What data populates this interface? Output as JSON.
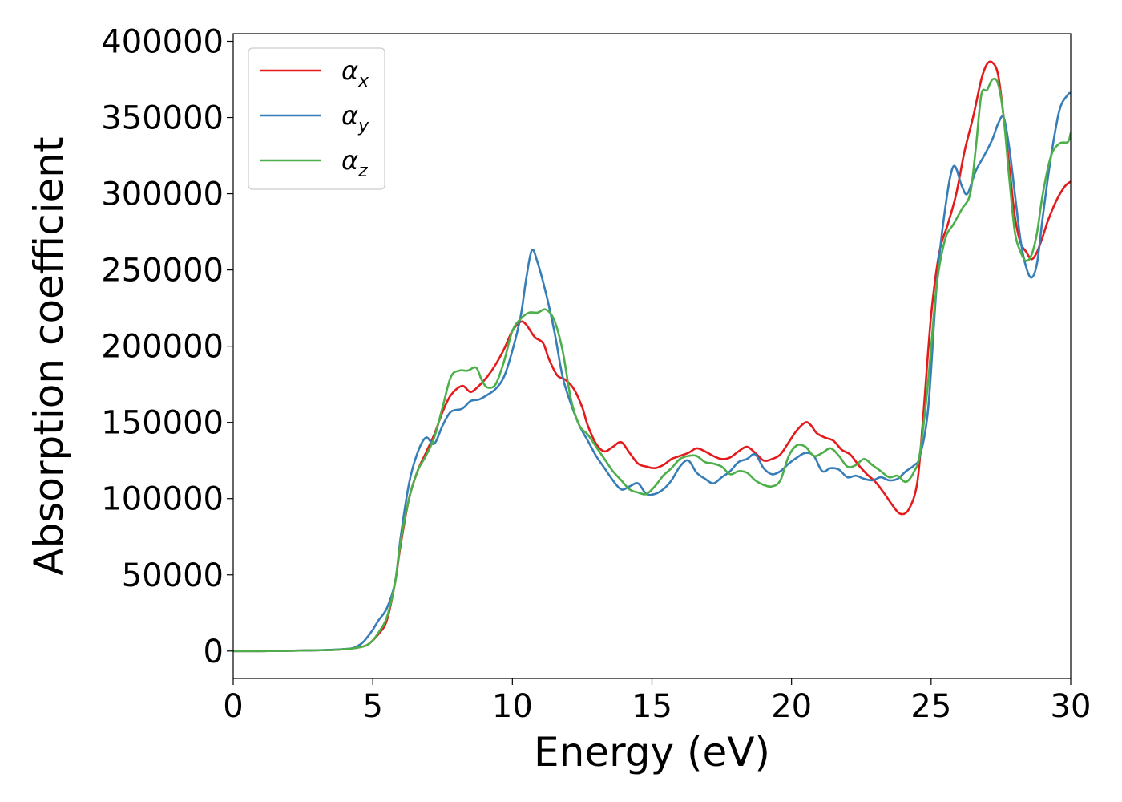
{
  "chart_data": {
    "type": "line",
    "title": "",
    "xlabel": "Energy (eV)",
    "ylabel": "Absorption coefficient",
    "xlim": [
      0,
      30
    ],
    "ylim": [
      -18000,
      405000
    ],
    "xticks": [
      0,
      5,
      10,
      15,
      20,
      25,
      30
    ],
    "yticks": [
      0,
      50000,
      100000,
      150000,
      200000,
      250000,
      300000,
      350000,
      400000
    ],
    "grid": false,
    "legend_position": "upper-left",
    "series": [
      {
        "name": "α_x",
        "label_base": "α",
        "label_sub": "x",
        "color": "#e41a1c",
        "x": [
          0,
          1,
          2,
          3,
          3.5,
          4,
          4.3,
          4.6,
          4.8,
          5,
          5.2,
          5.5,
          5.8,
          6,
          6.3,
          6.6,
          6.9,
          7.2,
          7.5,
          7.8,
          8.2,
          8.5,
          8.8,
          9.1,
          9.4,
          9.7,
          10,
          10.3,
          10.5,
          10.8,
          11.1,
          11.3,
          11.6,
          11.9,
          12.2,
          12.5,
          12.7,
          13,
          13.3,
          13.6,
          13.9,
          14.2,
          14.5,
          14.8,
          15.1,
          15.4,
          15.7,
          16,
          16.3,
          16.6,
          16.9,
          17.2,
          17.5,
          17.8,
          18.1,
          18.4,
          18.7,
          19,
          19.3,
          19.6,
          19.9,
          20.2,
          20.5,
          20.7,
          20.9,
          21.2,
          21.5,
          21.8,
          22.1,
          22.4,
          22.7,
          23,
          23.3,
          23.6,
          23.9,
          24.2,
          24.5,
          24.7,
          25,
          25.3,
          25.6,
          25.9,
          26.2,
          26.5,
          26.8,
          27,
          27.2,
          27.4,
          27.6,
          27.8,
          28,
          28.2,
          28.4,
          28.6,
          28.8,
          29,
          29.2,
          29.5,
          29.8,
          30
        ],
        "y": [
          0,
          0,
          200,
          500,
          700,
          1200,
          1800,
          2800,
          4000,
          7000,
          11000,
          20000,
          45000,
          70000,
          100000,
          118000,
          130000,
          142000,
          157000,
          168000,
          174000,
          170000,
          174000,
          180000,
          188000,
          198000,
          210000,
          216000,
          214000,
          206000,
          202000,
          192000,
          181000,
          178000,
          172000,
          160000,
          148000,
          136000,
          131000,
          134000,
          137000,
          130000,
          123000,
          121000,
          120000,
          122000,
          126000,
          128000,
          130000,
          133000,
          131000,
          128000,
          126000,
          127000,
          131000,
          134000,
          130000,
          125000,
          126000,
          129000,
          137000,
          145000,
          150000,
          148000,
          143000,
          140000,
          138000,
          132000,
          129000,
          122000,
          116000,
          111000,
          104000,
          96000,
          90000,
          93000,
          110000,
          150000,
          220000,
          262000,
          280000,
          300000,
          328000,
          350000,
          375000,
          385000,
          386000,
          378000,
          350000,
          318000,
          285000,
          268000,
          262000,
          257000,
          262000,
          272000,
          283000,
          296000,
          305000,
          308000
        ]
      },
      {
        "name": "α_y",
        "label_base": "α",
        "label_sub": "y",
        "color": "#377eb8",
        "x": [
          0,
          1,
          2,
          3,
          3.5,
          4,
          4.3,
          4.6,
          4.8,
          5,
          5.2,
          5.5,
          5.8,
          6,
          6.3,
          6.6,
          6.9,
          7.2,
          7.5,
          7.8,
          8.2,
          8.5,
          8.8,
          9.1,
          9.4,
          9.7,
          10,
          10.3,
          10.5,
          10.7,
          10.9,
          11.2,
          11.5,
          11.8,
          12.1,
          12.4,
          12.7,
          13,
          13.3,
          13.6,
          13.9,
          14.2,
          14.5,
          14.8,
          15.1,
          15.4,
          15.7,
          16,
          16.3,
          16.6,
          16.9,
          17.2,
          17.5,
          17.8,
          18.1,
          18.4,
          18.7,
          19,
          19.3,
          19.6,
          19.9,
          20.2,
          20.5,
          20.8,
          21.1,
          21.4,
          21.7,
          22,
          22.3,
          22.6,
          22.9,
          23.2,
          23.5,
          23.8,
          24.1,
          24.4,
          24.6,
          24.9,
          25.2,
          25.5,
          25.8,
          26.1,
          26.3,
          26.6,
          26.9,
          27.2,
          27.4,
          27.6,
          27.8,
          28,
          28.2,
          28.4,
          28.6,
          28.8,
          29,
          29.3,
          29.6,
          29.9,
          30
        ],
        "y": [
          0,
          0,
          200,
          500,
          800,
          1300,
          2000,
          5000,
          9000,
          14000,
          20000,
          28000,
          45000,
          75000,
          110000,
          130000,
          140000,
          136000,
          148000,
          157000,
          159000,
          164000,
          165000,
          168000,
          172000,
          180000,
          197000,
          220000,
          245000,
          263000,
          255000,
          235000,
          210000,
          180000,
          162000,
          148000,
          138000,
          128000,
          120000,
          112000,
          106000,
          108000,
          110000,
          103000,
          103000,
          106000,
          112000,
          121000,
          125000,
          117000,
          113000,
          110000,
          114000,
          118000,
          124000,
          126000,
          129000,
          120000,
          116000,
          118000,
          123000,
          127000,
          130000,
          128000,
          118000,
          120000,
          119000,
          114000,
          115000,
          113000,
          112000,
          114000,
          112000,
          113000,
          118000,
          122000,
          128000,
          160000,
          240000,
          290000,
          318000,
          305000,
          300000,
          315000,
          325000,
          336000,
          346000,
          350000,
          330000,
          300000,
          270000,
          252000,
          245000,
          255000,
          285000,
          325000,
          355000,
          365000,
          366000
        ]
      },
      {
        "name": "α_z",
        "label_base": "α",
        "label_sub": "z",
        "color": "#4daf4a",
        "x": [
          0,
          1,
          2,
          3,
          3.5,
          4,
          4.3,
          4.6,
          4.8,
          5,
          5.2,
          5.5,
          5.8,
          6,
          6.3,
          6.6,
          6.9,
          7.2,
          7.5,
          7.8,
          8.1,
          8.4,
          8.7,
          8.9,
          9.1,
          9.4,
          9.7,
          10,
          10.3,
          10.6,
          10.9,
          11.2,
          11.5,
          11.8,
          12.1,
          12.4,
          12.7,
          13,
          13.3,
          13.6,
          13.9,
          14.2,
          14.5,
          14.8,
          15.1,
          15.4,
          15.7,
          16,
          16.3,
          16.6,
          16.9,
          17.2,
          17.5,
          17.8,
          18.1,
          18.4,
          18.7,
          19,
          19.3,
          19.6,
          19.9,
          20.2,
          20.5,
          20.8,
          21.1,
          21.4,
          21.7,
          22,
          22.3,
          22.6,
          22.9,
          23.2,
          23.5,
          23.8,
          24.1,
          24.4,
          24.6,
          24.9,
          25.2,
          25.5,
          25.8,
          26.1,
          26.4,
          26.6,
          26.8,
          27,
          27.2,
          27.4,
          27.6,
          27.8,
          28,
          28.2,
          28.4,
          28.6,
          28.8,
          29,
          29.3,
          29.6,
          29.9,
          30
        ],
        "y": [
          0,
          0,
          200,
          500,
          700,
          1200,
          1800,
          2800,
          4000,
          7000,
          12000,
          22000,
          45000,
          72000,
          100000,
          118000,
          128000,
          140000,
          160000,
          180000,
          184000,
          184000,
          186000,
          178000,
          173000,
          175000,
          190000,
          210000,
          218000,
          222000,
          222000,
          224000,
          217000,
          197000,
          165000,
          148000,
          142000,
          134000,
          126000,
          118000,
          112000,
          106000,
          104000,
          103000,
          108000,
          115000,
          120000,
          126000,
          128000,
          128000,
          124000,
          123000,
          121000,
          116000,
          118000,
          117000,
          112000,
          109000,
          108000,
          112000,
          128000,
          135000,
          134000,
          128000,
          130000,
          133000,
          128000,
          121000,
          122000,
          126000,
          122000,
          118000,
          114000,
          115000,
          111000,
          118000,
          130000,
          178000,
          240000,
          270000,
          280000,
          290000,
          300000,
          330000,
          365000,
          368000,
          375000,
          372000,
          350000,
          310000,
          275000,
          262000,
          256000,
          260000,
          275000,
          300000,
          325000,
          333000,
          334000,
          340000
        ]
      }
    ]
  }
}
